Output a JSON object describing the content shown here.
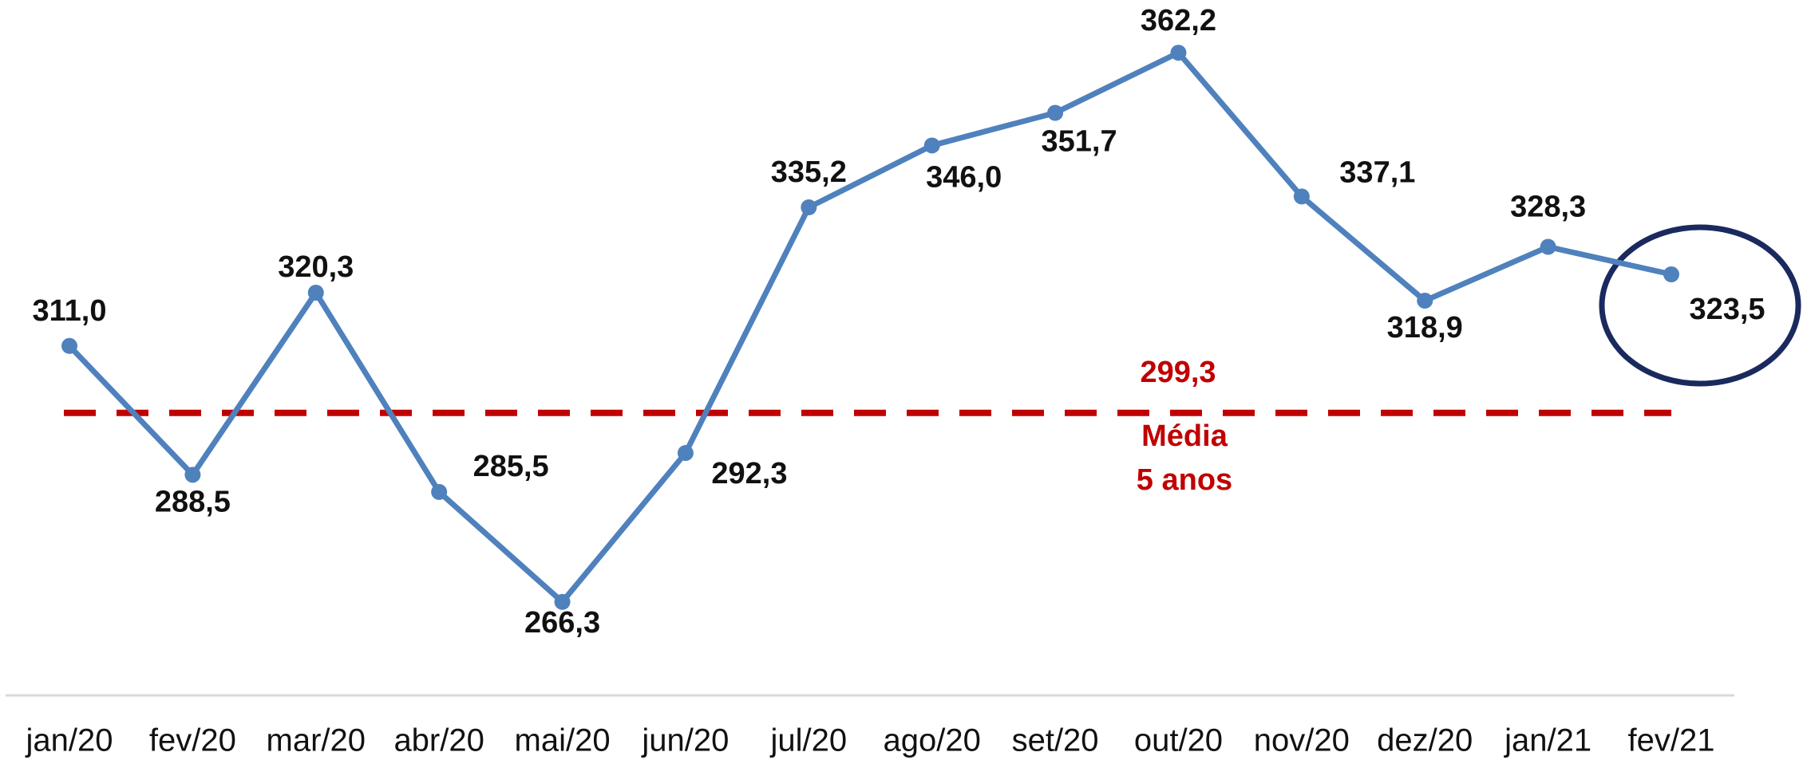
{
  "chart_data": {
    "type": "line",
    "categories": [
      "jan/20",
      "fev/20",
      "mar/20",
      "abr/20",
      "mai/20",
      "jun/20",
      "jul/20",
      "ago/20",
      "set/20",
      "out/20",
      "nov/20",
      "dez/20",
      "jan/21",
      "fev/21"
    ],
    "values": [
      311.0,
      288.5,
      320.3,
      285.5,
      266.3,
      292.3,
      335.2,
      346.0,
      351.7,
      362.2,
      337.1,
      318.9,
      328.3,
      323.5
    ],
    "value_labels": [
      "311,0",
      "288,5",
      "320,3",
      "285,5",
      "266,3",
      "292,3",
      "335,2",
      "346,0",
      "351,7",
      "362,2",
      "337,1",
      "318,9",
      "328,3",
      "323,5"
    ],
    "color": "#4f81bd",
    "ylim": [
      260,
      365
    ],
    "mean": {
      "value": 299.3,
      "label": "299,3",
      "text": [
        "Média",
        "5 anos"
      ],
      "color": "#c00000"
    }
  }
}
